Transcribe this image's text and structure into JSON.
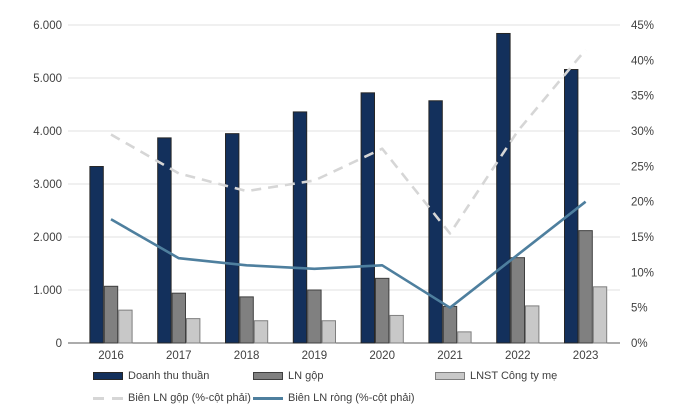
{
  "chart_data": {
    "type": "bar+line combo",
    "categories": [
      "2016",
      "2017",
      "2018",
      "2019",
      "2020",
      "2021",
      "2022",
      "2023"
    ],
    "bar_series": [
      {
        "name": "Doanh thu thuần",
        "color": "#13305c",
        "border": "#262626",
        "values": [
          3330,
          3870,
          3950,
          4360,
          4720,
          4570,
          5840,
          5160
        ]
      },
      {
        "name": "LN gộp",
        "color": "#808080",
        "border": "#3f3f3f",
        "values": [
          1070,
          940,
          870,
          1000,
          1220,
          690,
          1610,
          2120
        ]
      },
      {
        "name": "LNST Công ty mẹ",
        "color": "#c8c8c8",
        "border": "#7f7f7f",
        "values": [
          620,
          460,
          420,
          420,
          520,
          210,
          700,
          1060
        ]
      }
    ],
    "line_series": [
      {
        "name": "Biên LN gộp (%-cột phải)",
        "color": "#d6d6d6",
        "style": "dashed",
        "axis": "right",
        "values": [
          29.5,
          24,
          21.5,
          23,
          27.5,
          15.5,
          30,
          41.5
        ]
      },
      {
        "name": "Biên LN ròng (%-cột phải)",
        "color": "#4e7f9e",
        "style": "solid",
        "axis": "right",
        "values": [
          17.5,
          12,
          11,
          10.5,
          11,
          5,
          12.5,
          20
        ]
      }
    ],
    "left_axis": {
      "min": 0,
      "max": 6000,
      "step": 1000,
      "tick_labels": [
        "6.000",
        "5.000",
        "4.000",
        "3.000",
        "2.000",
        "1.000",
        "0"
      ]
    },
    "right_axis": {
      "min": 0,
      "max": 45,
      "step": 5,
      "tick_labels": [
        "45%",
        "40%",
        "35%",
        "30%",
        "25%",
        "20%",
        "15%",
        "10%",
        "5%",
        "0%"
      ]
    },
    "grid": true,
    "legend_position": "bottom",
    "colors": {
      "grid": "#e2e2e2",
      "axis": "#595959",
      "text": "#404040",
      "background": "#ffffff"
    }
  }
}
